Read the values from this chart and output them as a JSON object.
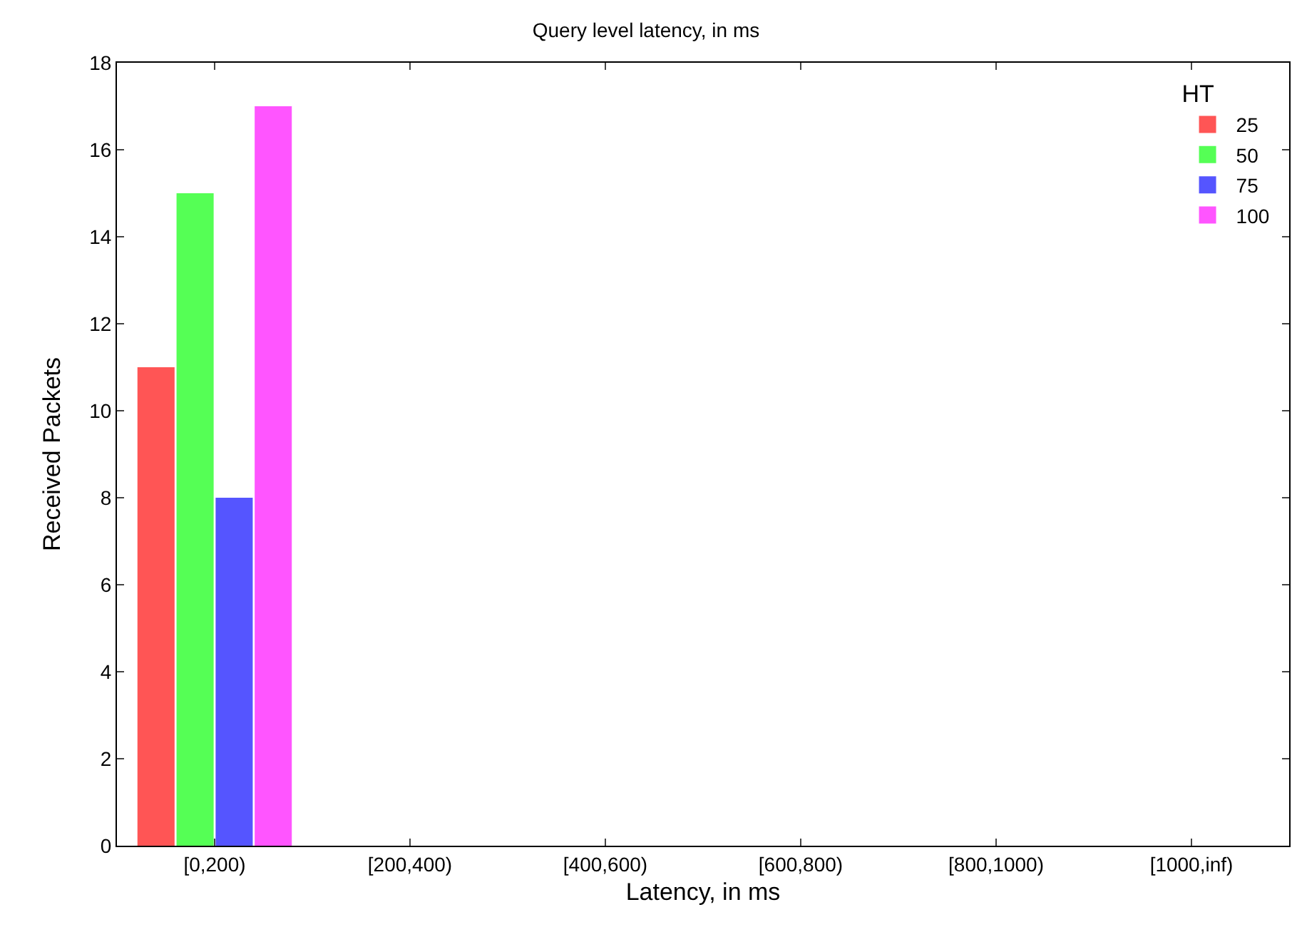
{
  "chart_data": {
    "type": "bar",
    "title": "Query level latency, in ms",
    "xlabel": "Latency, in ms",
    "ylabel": "Received Packets",
    "legend_title": "HT",
    "legend": "top right",
    "grid": false,
    "categories": [
      "[0,200)",
      "[200,400)",
      "[400,600)",
      "[600,800)",
      "[800,1000)",
      "[1000,inf)"
    ],
    "ylim": [
      0,
      18
    ],
    "yticks": [
      0,
      2,
      4,
      6,
      8,
      10,
      12,
      14,
      16,
      18
    ],
    "series": [
      {
        "name": "25",
        "color": "#ff5555",
        "values": [
          11,
          0,
          0,
          0,
          0,
          0
        ]
      },
      {
        "name": "50",
        "color": "#55ff55",
        "values": [
          15,
          0,
          0,
          0,
          0,
          0
        ]
      },
      {
        "name": "75",
        "color": "#5555ff",
        "values": [
          8,
          0,
          0,
          0,
          0,
          0
        ]
      },
      {
        "name": "100",
        "color": "#ff55ff",
        "values": [
          17,
          0,
          0,
          0,
          0,
          0
        ]
      }
    ]
  }
}
